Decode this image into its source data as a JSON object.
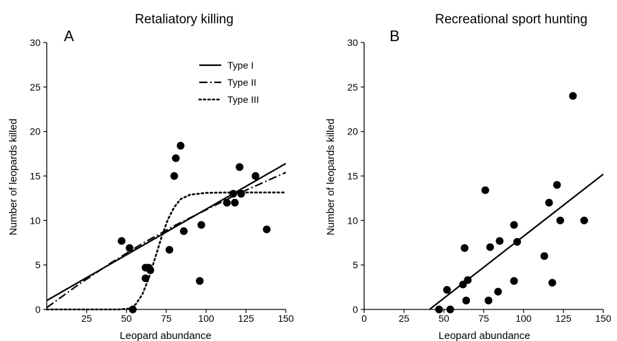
{
  "chart_data": [
    {
      "type": "scatter",
      "panel_label": "A",
      "title": "Retaliatory killing",
      "xlabel": "Leopard abundance",
      "ylabel": "Number of leopards killed",
      "xlim": [
        0,
        150
      ],
      "ylim": [
        0,
        30
      ],
      "xticks": [
        "25",
        "50",
        "75",
        "100",
        "125",
        "150"
      ],
      "yticks": [
        "0",
        "5",
        "10",
        "15",
        "20",
        "25",
        "30"
      ],
      "grid": false,
      "legend": "top-right",
      "points": [
        {
          "x": 47,
          "y": 7.7
        },
        {
          "x": 52,
          "y": 6.9
        },
        {
          "x": 54,
          "y": 0
        },
        {
          "x": 62,
          "y": 4.7
        },
        {
          "x": 62,
          "y": 3.5
        },
        {
          "x": 64,
          "y": 4.7
        },
        {
          "x": 65,
          "y": 4.4
        },
        {
          "x": 77,
          "y": 6.7
        },
        {
          "x": 80,
          "y": 15
        },
        {
          "x": 81,
          "y": 17
        },
        {
          "x": 84,
          "y": 18.4
        },
        {
          "x": 86,
          "y": 8.8
        },
        {
          "x": 96,
          "y": 3.2
        },
        {
          "x": 97,
          "y": 9.5
        },
        {
          "x": 113,
          "y": 12
        },
        {
          "x": 117,
          "y": 13
        },
        {
          "x": 118,
          "y": 12
        },
        {
          "x": 121,
          "y": 16
        },
        {
          "x": 122,
          "y": 13
        },
        {
          "x": 131,
          "y": 15
        },
        {
          "x": 138,
          "y": 9
        }
      ],
      "fits": [
        {
          "name": "Type I",
          "style": "solid",
          "x": [
            0,
            150
          ],
          "y": [
            1.0,
            16.4
          ]
        },
        {
          "name": "Type II",
          "style": "dashdot",
          "x": [
            0,
            20,
            40,
            60,
            80,
            100,
            120,
            150
          ],
          "y": [
            0.2,
            2.8,
            5.2,
            7.4,
            9.4,
            11.2,
            13.0,
            15.4
          ]
        },
        {
          "name": "Type III",
          "style": "dotted",
          "x": [
            0,
            45,
            52,
            56,
            60,
            64,
            68,
            72,
            76,
            80,
            84,
            90,
            100,
            115,
            150
          ],
          "y": [
            0,
            0,
            0.1,
            0.6,
            1.7,
            3.5,
            5.8,
            8.1,
            10.1,
            11.5,
            12.4,
            12.9,
            13.1,
            13.15,
            13.15
          ]
        }
      ]
    },
    {
      "type": "scatter",
      "panel_label": "B",
      "title": "Recreational sport hunting",
      "xlabel": "Leopard abundance",
      "ylabel": "Number of leopards killed",
      "xlim": [
        0,
        150
      ],
      "ylim": [
        0,
        30
      ],
      "xticks": [
        "0",
        "25",
        "50",
        "75",
        "100",
        "125",
        "150"
      ],
      "yticks": [
        "0",
        "5",
        "10",
        "15",
        "20",
        "25",
        "30"
      ],
      "grid": false,
      "points": [
        {
          "x": 47,
          "y": 0
        },
        {
          "x": 52,
          "y": 2.2
        },
        {
          "x": 54,
          "y": 0
        },
        {
          "x": 62,
          "y": 2.8
        },
        {
          "x": 63,
          "y": 6.9
        },
        {
          "x": 64,
          "y": 1
        },
        {
          "x": 65,
          "y": 3.3
        },
        {
          "x": 76,
          "y": 13.4
        },
        {
          "x": 78,
          "y": 1
        },
        {
          "x": 79,
          "y": 7
        },
        {
          "x": 85,
          "y": 7.7
        },
        {
          "x": 84,
          "y": 2
        },
        {
          "x": 94,
          "y": 9.5
        },
        {
          "x": 94,
          "y": 3.2
        },
        {
          "x": 96,
          "y": 7.6
        },
        {
          "x": 113,
          "y": 6
        },
        {
          "x": 116,
          "y": 12
        },
        {
          "x": 118,
          "y": 3
        },
        {
          "x": 121,
          "y": 14
        },
        {
          "x": 123,
          "y": 10
        },
        {
          "x": 131,
          "y": 24
        },
        {
          "x": 138,
          "y": 10
        }
      ],
      "fits": [
        {
          "name": "",
          "style": "solid",
          "x": [
            41,
            150
          ],
          "y": [
            0,
            15.2
          ]
        }
      ]
    }
  ]
}
